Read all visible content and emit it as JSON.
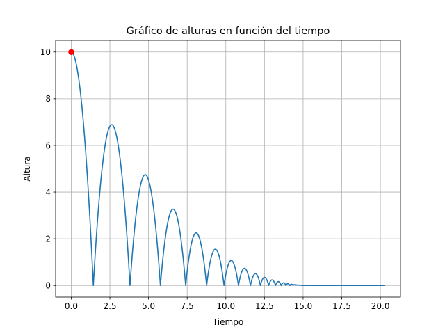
{
  "chart_data": {
    "type": "line",
    "title": "Gráfico de alturas en función del tiempo",
    "xlabel": "Tiempo",
    "ylabel": "Altura",
    "xlim": [
      -1.01,
      21.3
    ],
    "ylim": [
      -0.5,
      10.5
    ],
    "grid": true,
    "xticks": [
      0.0,
      2.5,
      5.0,
      7.5,
      10.0,
      12.5,
      15.0,
      17.5,
      20.0
    ],
    "xtick_labels": [
      "0.0",
      "2.5",
      "5.0",
      "7.5",
      "10.0",
      "12.5",
      "15.0",
      "17.5",
      "20.0"
    ],
    "yticks": [
      0,
      2,
      4,
      6,
      8,
      10
    ],
    "ytick_labels": [
      "0",
      "2",
      "4",
      "6",
      "8",
      "10"
    ],
    "series": [
      {
        "color": "#1f77b4",
        "model": "bouncing-ball",
        "initial_height": 10,
        "gravity": 9.8,
        "restitution": 0.83,
        "x_end": 20.3
      }
    ],
    "marker": {
      "x": 0,
      "y": 10,
      "color": "#ff0000"
    }
  }
}
